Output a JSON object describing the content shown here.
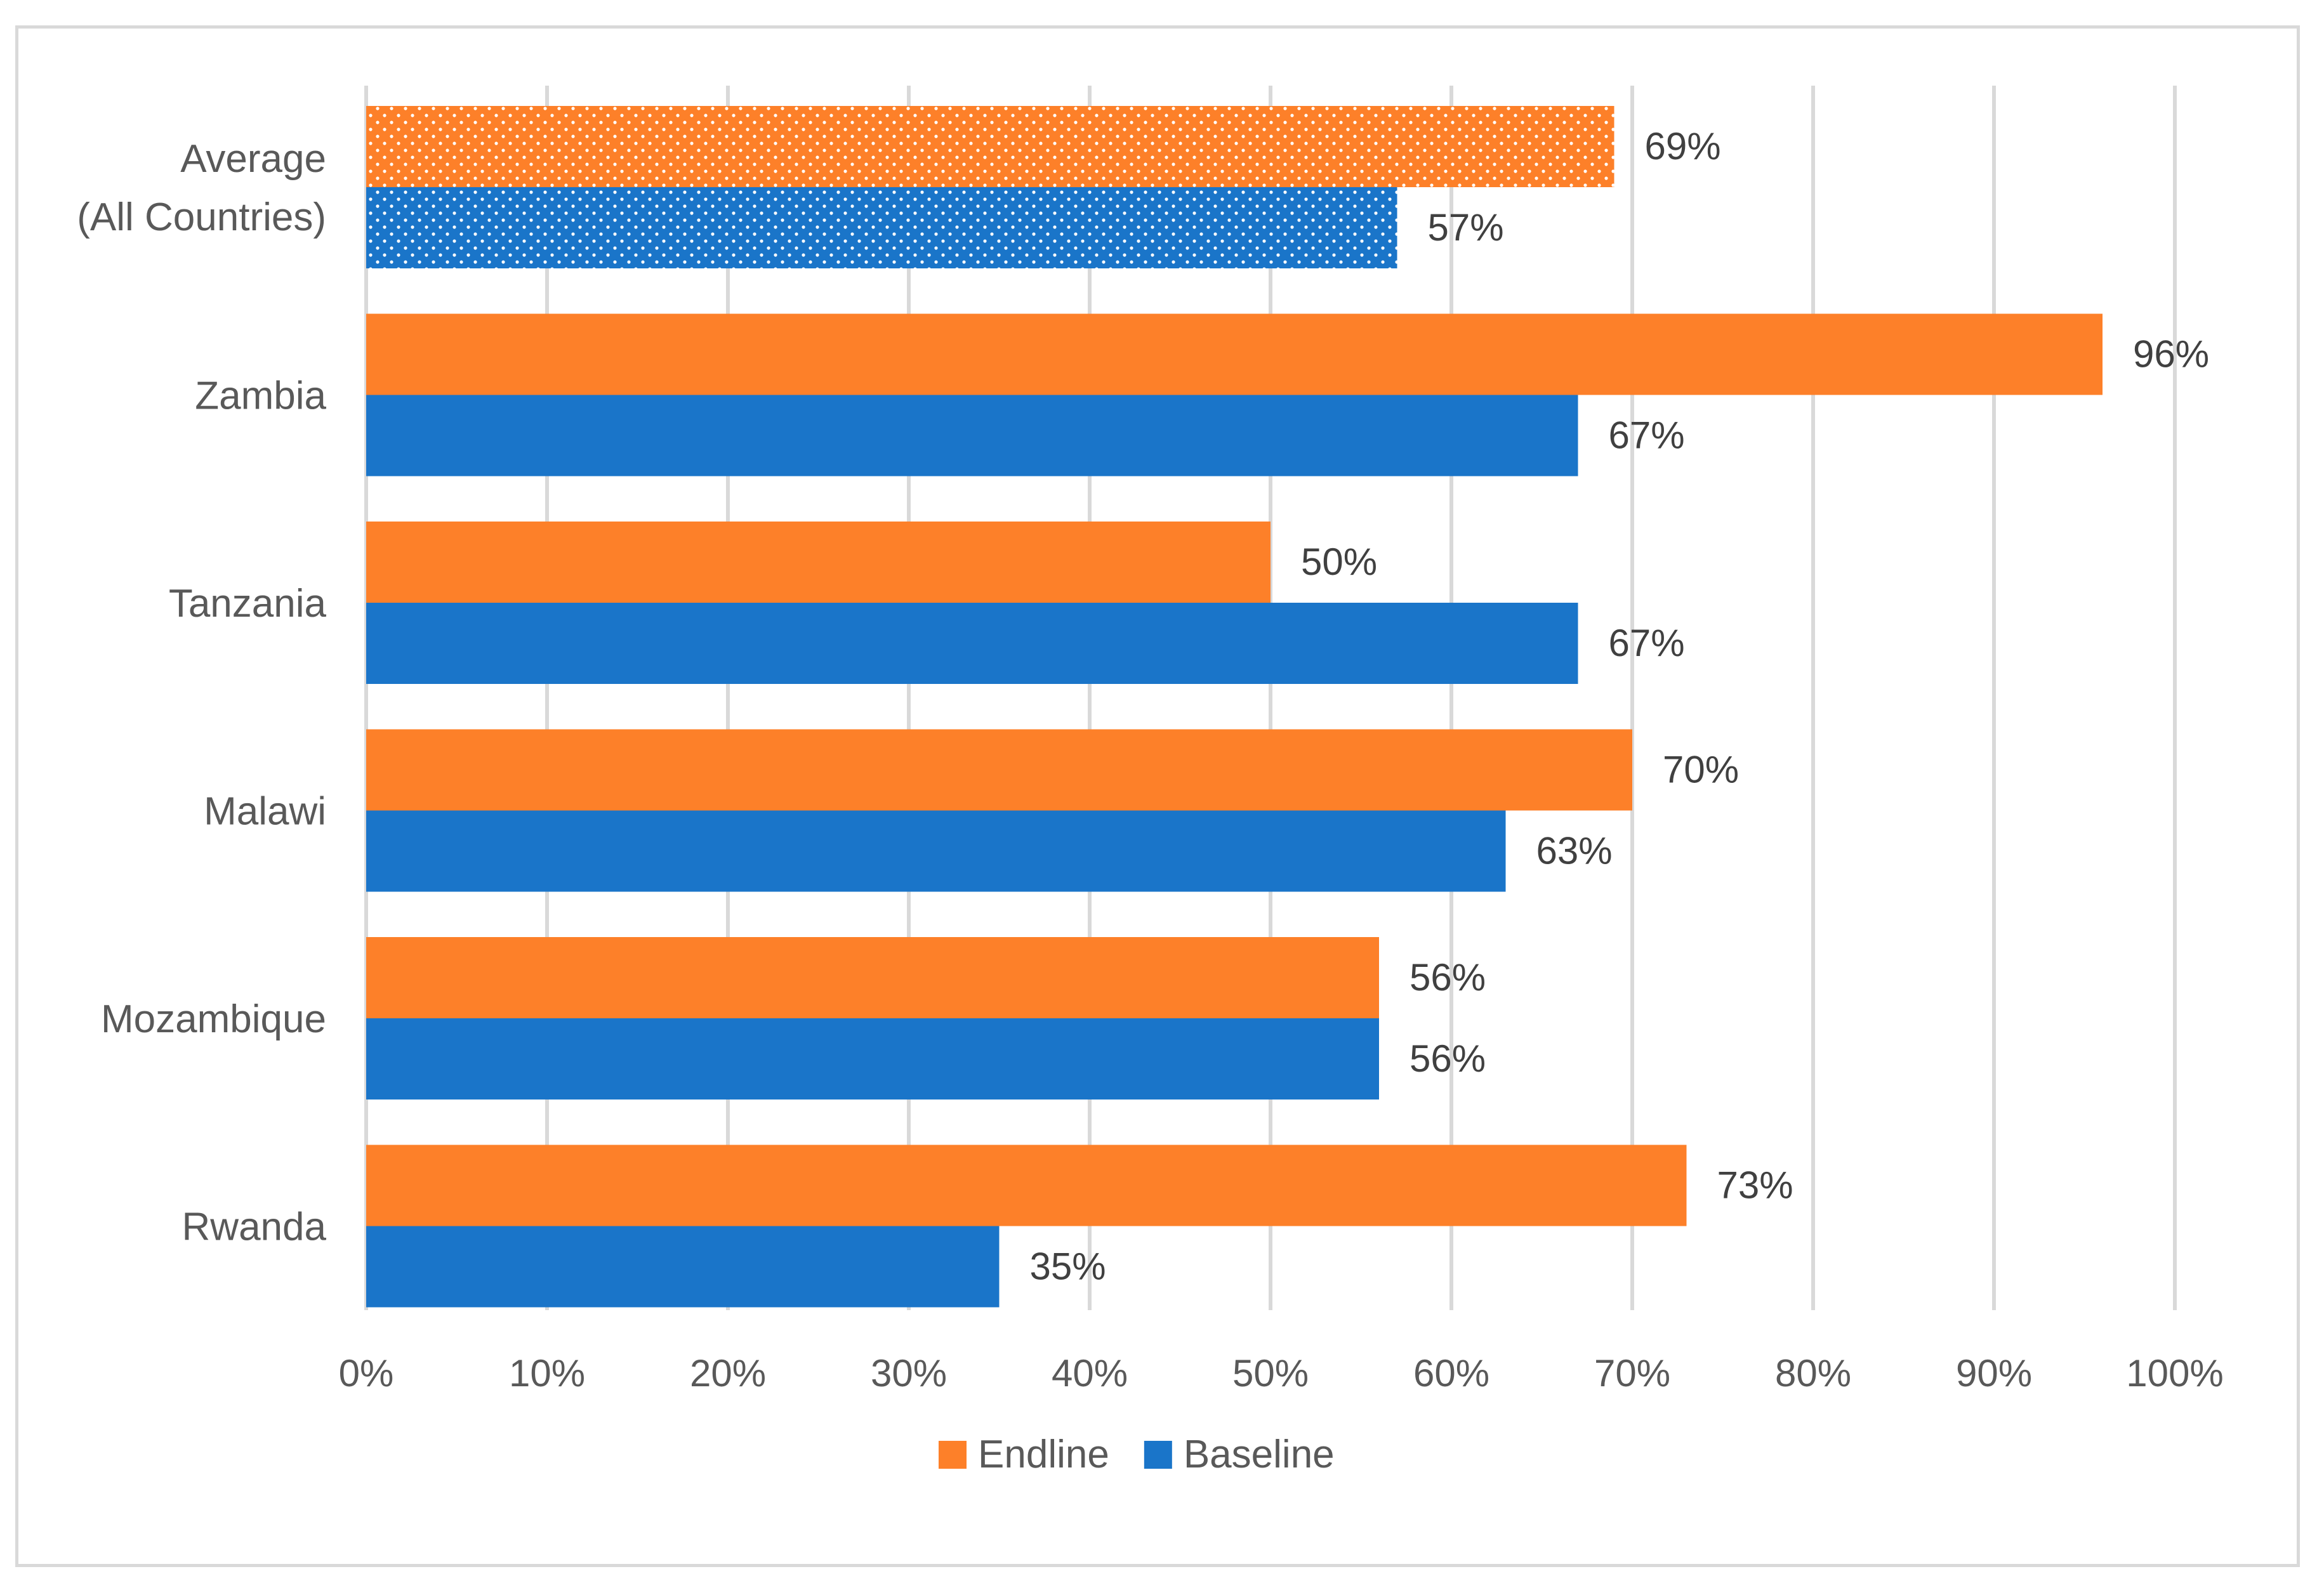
{
  "chart_data": {
    "type": "bar",
    "orientation": "horizontal",
    "categories": [
      [
        "Average",
        "(All Countries)"
      ],
      [
        "Zambia"
      ],
      [
        "Tanzania"
      ],
      [
        "Malawi"
      ],
      [
        "Mozambique"
      ],
      [
        "Rwanda"
      ]
    ],
    "series": [
      {
        "name": "Endline",
        "color": "#fd8029",
        "values": [
          69,
          96,
          50,
          70,
          56,
          73
        ],
        "labels": [
          "69%",
          "96%",
          "50%",
          "70%",
          "56%",
          "73%"
        ]
      },
      {
        "name": "Baseline",
        "color": "#1a75c9",
        "values": [
          57,
          67,
          67,
          63,
          56,
          35
        ],
        "labels": [
          "57%",
          "67%",
          "67%",
          "63%",
          "56%",
          "35%"
        ]
      }
    ],
    "patterned_category_index": 0,
    "xlim": [
      0,
      100
    ],
    "xticks": [
      "0%",
      "10%",
      "20%",
      "30%",
      "40%",
      "50%",
      "60%",
      "70%",
      "80%",
      "90%",
      "100%"
    ],
    "grid": true,
    "legend_position": "bottom",
    "title": "",
    "xlabel": "",
    "ylabel": ""
  }
}
